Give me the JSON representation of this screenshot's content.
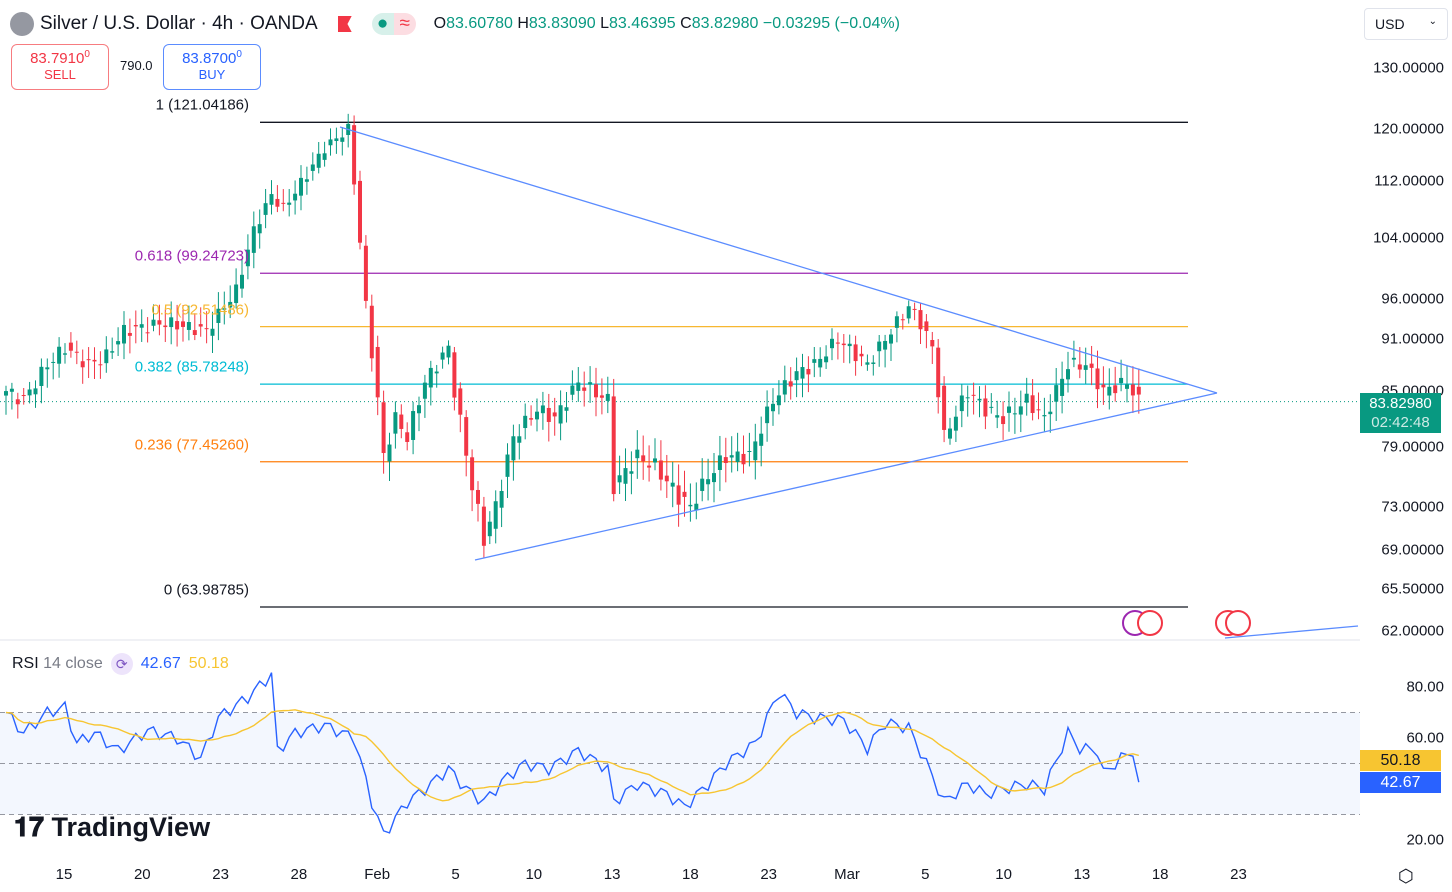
{
  "header": {
    "title": "Silver / U.S. Dollar · 4h · OANDA",
    "o_label": "O",
    "o": "83.60780",
    "h_label": "H",
    "h": "83.83090",
    "l_label": "L",
    "l": "83.46395",
    "c_label": "C",
    "c": "83.82980",
    "change": "−0.03295 (−0.04%)"
  },
  "trade": {
    "sell_price": "83.7910",
    "sell_sup": "0",
    "sell_label": "SELL",
    "spread": "790.0",
    "buy_price": "83.8700",
    "buy_sup": "0",
    "buy_label": "BUY"
  },
  "currency": "USD",
  "price_axis": {
    "labels": [
      "130.00000",
      "120.00000",
      "112.00000",
      "104.00000",
      "96.00000",
      "91.00000",
      "85.00000",
      "79.00000",
      "73.00000",
      "69.00000",
      "65.50000",
      "62.00000"
    ],
    "values": [
      130,
      120,
      112,
      104,
      96,
      91,
      85,
      79,
      73,
      69,
      65.5,
      62
    ],
    "current_price": "83.82980",
    "countdown": "02:42:48"
  },
  "time_axis": [
    "15",
    "20",
    "23",
    "28",
    "Feb",
    "5",
    "10",
    "13",
    "18",
    "23",
    "Mar",
    "5",
    "10",
    "13",
    "18",
    "23"
  ],
  "fib": [
    {
      "label": "1 (121.04186)",
      "value": 121.04186,
      "color": "#131722"
    },
    {
      "label": "0.618 (99.24723)",
      "value": 99.24723,
      "color": "#9c27b0"
    },
    {
      "label": "0.5 (92.51486)",
      "value": 92.51486,
      "color": "#f7b731"
    },
    {
      "label": "0.382 (85.78248)",
      "value": 85.78248,
      "color": "#00bcd4"
    },
    {
      "label": "0.236 (77.45260)",
      "value": 77.4526,
      "color": "#ff7f0e"
    },
    {
      "label": "0 (63.98785)",
      "value": 63.98785,
      "color": "#131722"
    }
  ],
  "rsi": {
    "title": "RSI",
    "params": "14 close",
    "value": "42.67",
    "ma_value": "50.18",
    "axis": [
      "80.00",
      "60.00",
      "20.00"
    ],
    "axis_values": [
      80,
      60,
      20
    ]
  },
  "brand": "TradingView",
  "chart_data": {
    "type": "candlestick",
    "title": "Silver / U.S. Dollar · 4h · OANDA",
    "ylim": [
      62,
      130
    ],
    "scale": "log",
    "price_waypoints": [
      [
        0,
        85
      ],
      [
        3,
        84
      ],
      [
        7,
        88
      ],
      [
        10,
        90
      ],
      [
        14,
        88
      ],
      [
        17,
        89
      ],
      [
        20,
        92
      ],
      [
        27,
        93
      ],
      [
        34,
        92
      ],
      [
        39,
        97
      ],
      [
        42,
        105
      ],
      [
        45,
        110
      ],
      [
        47,
        108
      ],
      [
        51,
        113
      ],
      [
        54,
        117
      ],
      [
        58,
        120
      ],
      [
        59,
        112
      ],
      [
        61,
        95
      ],
      [
        63,
        84
      ],
      [
        64,
        78
      ],
      [
        66,
        82
      ],
      [
        68,
        80
      ],
      [
        71,
        86
      ],
      [
        75,
        90
      ],
      [
        76,
        85
      ],
      [
        79,
        75
      ],
      [
        81,
        70
      ],
      [
        83,
        73
      ],
      [
        86,
        80
      ],
      [
        90,
        83
      ],
      [
        93,
        82
      ],
      [
        97,
        86
      ],
      [
        102,
        84
      ],
      [
        103,
        75
      ],
      [
        107,
        78
      ],
      [
        110,
        77
      ],
      [
        114,
        74
      ],
      [
        116,
        73
      ],
      [
        119,
        76
      ],
      [
        122,
        78
      ],
      [
        126,
        78
      ],
      [
        130,
        84
      ],
      [
        134,
        87
      ],
      [
        137,
        88
      ],
      [
        141,
        91
      ],
      [
        146,
        88
      ],
      [
        149,
        91
      ],
      [
        153,
        95
      ],
      [
        155,
        93
      ],
      [
        157,
        90
      ],
      [
        159,
        80
      ],
      [
        163,
        85
      ],
      [
        166,
        83
      ],
      [
        169,
        82
      ],
      [
        173,
        84
      ],
      [
        176,
        82
      ],
      [
        180,
        88
      ],
      [
        183,
        88
      ],
      [
        186,
        85
      ],
      [
        190,
        86
      ],
      [
        192,
        83.83
      ]
    ],
    "rsi_waypoints": [
      [
        0,
        70
      ],
      [
        3,
        62
      ],
      [
        7,
        70
      ],
      [
        10,
        72
      ],
      [
        12,
        58
      ],
      [
        15,
        62
      ],
      [
        19,
        55
      ],
      [
        24,
        63
      ],
      [
        29,
        60
      ],
      [
        33,
        52
      ],
      [
        36,
        68
      ],
      [
        41,
        76
      ],
      [
        45,
        85
      ],
      [
        46,
        55
      ],
      [
        49,
        62
      ],
      [
        54,
        65
      ],
      [
        59,
        60
      ],
      [
        62,
        35
      ],
      [
        64,
        22
      ],
      [
        68,
        35
      ],
      [
        71,
        40
      ],
      [
        75,
        48
      ],
      [
        78,
        40
      ],
      [
        81,
        35
      ],
      [
        85,
        45
      ],
      [
        88,
        50
      ],
      [
        92,
        48
      ],
      [
        97,
        55
      ],
      [
        102,
        48
      ],
      [
        103,
        35
      ],
      [
        107,
        42
      ],
      [
        112,
        38
      ],
      [
        115,
        33
      ],
      [
        119,
        42
      ],
      [
        122,
        50
      ],
      [
        127,
        58
      ],
      [
        131,
        78
      ],
      [
        134,
        70
      ],
      [
        137,
        68
      ],
      [
        142,
        67
      ],
      [
        146,
        56
      ],
      [
        149,
        66
      ],
      [
        153,
        64
      ],
      [
        156,
        50
      ],
      [
        159,
        35
      ],
      [
        163,
        42
      ],
      [
        166,
        38
      ],
      [
        169,
        40
      ],
      [
        173,
        42
      ],
      [
        176,
        40
      ],
      [
        180,
        62
      ],
      [
        182,
        56
      ],
      [
        185,
        55
      ],
      [
        186,
        46
      ],
      [
        189,
        52
      ],
      [
        191,
        55
      ],
      [
        192,
        42.67
      ]
    ],
    "rsi_bands": [
      70,
      50,
      30
    ]
  }
}
